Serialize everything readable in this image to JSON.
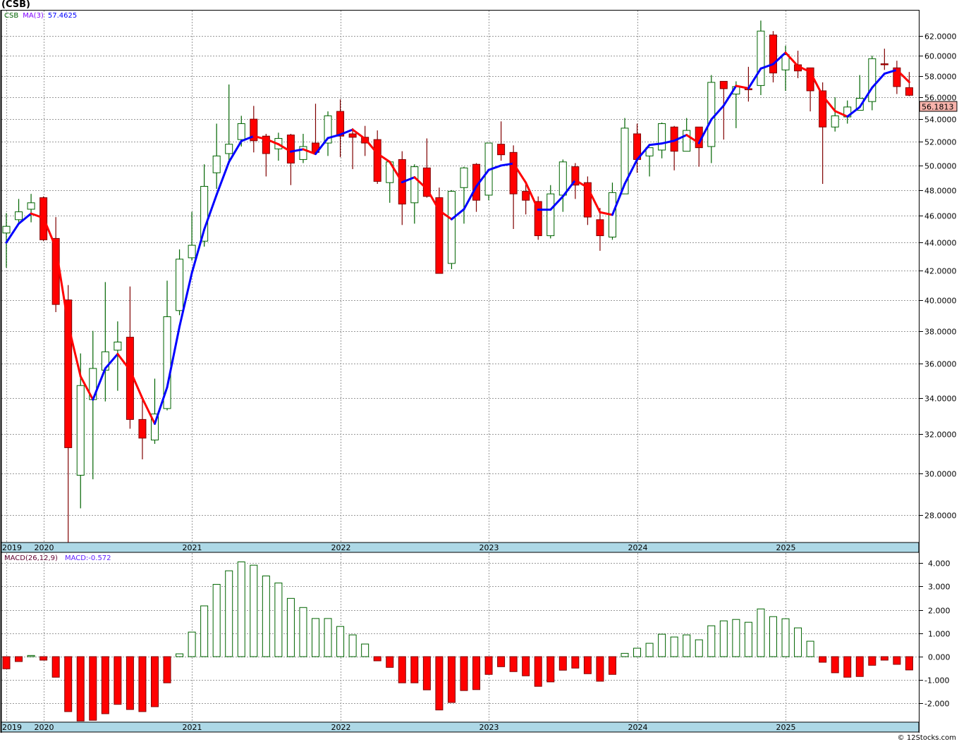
{
  "header": {
    "title": "(CSB)"
  },
  "price_legend": {
    "symbol": "CSB",
    "ma_label": "MA(3)",
    "ma_value": "57.4625"
  },
  "macd_legend": {
    "label": "MACD(26,12,9)",
    "value": "MACD:-0.572"
  },
  "last_price_tag": "56.1813",
  "footer": "© 12Stocks.com",
  "colors": {
    "up": "#006400",
    "down_fill": "#ff0000",
    "down_border": "#800000",
    "ma_up": "#0000ff",
    "ma_down": "#ff0000",
    "time_band": "#add8e6",
    "price_tag": "#f7b3ab"
  },
  "chart_data": [
    {
      "type": "candlestick",
      "title": "CSB monthly",
      "interval": "monthly",
      "first_period": "2019-10",
      "y_scale": "log",
      "ylim": [
        26.7,
        64.0
      ],
      "y_ticks": [
        "62.0000",
        "60.0000",
        "58.0000",
        "56.0000",
        "54.0000",
        "52.0000",
        "50.0000",
        "48.0000",
        "46.0000",
        "44.0000",
        "42.0000",
        "40.0000",
        "38.0000",
        "36.0000",
        "34.0000",
        "32.0000",
        "30.0000",
        "28.0000"
      ],
      "years": [
        {
          "label": "2019",
          "index": 0
        },
        {
          "label": "2020",
          "index": 3
        },
        {
          "label": "2021",
          "index": 15
        },
        {
          "label": "2022",
          "index": 27
        },
        {
          "label": "2023",
          "index": 39
        },
        {
          "label": "2024",
          "index": 51
        },
        {
          "label": "2025",
          "index": 63
        }
      ],
      "moving_average": {
        "name": "MA(3)",
        "period": 3,
        "last": 57.4625
      },
      "ohlc": [
        [
          44.7,
          46.2,
          42.2,
          45.2
        ],
        [
          45.7,
          47.3,
          45.5,
          46.3
        ],
        [
          46.5,
          47.7,
          45.5,
          47.0
        ],
        [
          47.4,
          47.5,
          44.1,
          44.2
        ],
        [
          44.3,
          45.9,
          39.2,
          39.7
        ],
        [
          40.0,
          41.0,
          26.7,
          31.3
        ],
        [
          29.9,
          36.6,
          28.3,
          34.7
        ],
        [
          33.9,
          38.0,
          29.7,
          35.7
        ],
        [
          35.6,
          41.2,
          33.8,
          36.7
        ],
        [
          36.8,
          38.6,
          34.4,
          37.3
        ],
        [
          37.6,
          40.9,
          32.3,
          32.8
        ],
        [
          32.8,
          33.9,
          30.7,
          31.8
        ],
        [
          31.7,
          35.1,
          31.5,
          33.1
        ],
        [
          33.4,
          41.3,
          33.3,
          38.9
        ],
        [
          39.3,
          43.5,
          39.0,
          42.8
        ],
        [
          42.9,
          46.3,
          42.7,
          43.8
        ],
        [
          44.1,
          50.1,
          43.7,
          48.3
        ],
        [
          49.4,
          53.6,
          48.1,
          50.8
        ],
        [
          51.0,
          57.2,
          50.2,
          51.8
        ],
        [
          52.2,
          54.3,
          51.6,
          53.6
        ],
        [
          54.0,
          55.2,
          51.1,
          52.1
        ],
        [
          52.5,
          52.7,
          49.1,
          51.0
        ],
        [
          51.4,
          52.8,
          50.4,
          52.3
        ],
        [
          52.6,
          52.7,
          48.4,
          50.2
        ],
        [
          50.5,
          52.7,
          50.2,
          51.6
        ],
        [
          51.9,
          55.4,
          50.9,
          51.1
        ],
        [
          51.9,
          54.7,
          50.8,
          54.3
        ],
        [
          54.7,
          55.8,
          50.7,
          52.5
        ],
        [
          52.7,
          53.2,
          49.7,
          52.4
        ],
        [
          52.4,
          53.4,
          50.8,
          51.9
        ],
        [
          52.2,
          53.0,
          48.5,
          48.7
        ],
        [
          48.6,
          50.3,
          47.0,
          50.3
        ],
        [
          50.5,
          51.2,
          45.3,
          46.9
        ],
        [
          47.0,
          50.1,
          45.4,
          49.9
        ],
        [
          49.8,
          52.3,
          47.4,
          47.5
        ],
        [
          47.4,
          48.2,
          41.8,
          41.8
        ],
        [
          42.5,
          48.0,
          42.1,
          47.9
        ],
        [
          48.2,
          49.9,
          45.4,
          49.8
        ],
        [
          50.1,
          50.2,
          46.3,
          47.2
        ],
        [
          47.6,
          51.9,
          47.2,
          51.9
        ],
        [
          51.8,
          53.8,
          50.4,
          50.9
        ],
        [
          51.1,
          51.7,
          45.0,
          47.7
        ],
        [
          47.9,
          48.5,
          46.1,
          47.2
        ],
        [
          47.1,
          47.5,
          44.2,
          44.5
        ],
        [
          44.5,
          48.4,
          44.3,
          47.7
        ],
        [
          47.6,
          50.5,
          46.3,
          50.3
        ],
        [
          49.9,
          50.2,
          47.3,
          48.4
        ],
        [
          48.6,
          49.1,
          45.3,
          45.9
        ],
        [
          45.7,
          46.6,
          43.4,
          44.5
        ],
        [
          44.4,
          48.6,
          44.2,
          47.8
        ],
        [
          47.7,
          54.1,
          47.7,
          53.2
        ],
        [
          52.7,
          53.6,
          49.4,
          50.5
        ],
        [
          50.8,
          51.5,
          49.1,
          51.5
        ],
        [
          51.3,
          53.7,
          50.6,
          53.6
        ],
        [
          53.3,
          53.4,
          49.6,
          51.2
        ],
        [
          51.2,
          54.1,
          51.2,
          53.0
        ],
        [
          53.3,
          53.3,
          49.9,
          51.5
        ],
        [
          51.6,
          58.1,
          50.2,
          57.4
        ],
        [
          57.5,
          57.5,
          52.2,
          56.8
        ],
        [
          56.3,
          57.5,
          53.2,
          57.0
        ],
        [
          56.8,
          58.9,
          55.6,
          56.7
        ],
        [
          57.1,
          63.6,
          56.2,
          62.5
        ],
        [
          62.1,
          62.5,
          57.4,
          58.3
        ],
        [
          58.6,
          61.0,
          56.6,
          60.1
        ],
        [
          59.1,
          60.5,
          57.8,
          58.5
        ],
        [
          58.8,
          58.8,
          54.7,
          56.6
        ],
        [
          56.6,
          57.4,
          48.5,
          53.3
        ],
        [
          53.3,
          56.0,
          52.9,
          54.3
        ],
        [
          54.2,
          55.7,
          53.6,
          55.1
        ],
        [
          54.8,
          58.1,
          54.8,
          55.9
        ],
        [
          55.6,
          60.0,
          54.8,
          59.7
        ],
        [
          59.2,
          60.7,
          58.6,
          59.1
        ],
        [
          58.8,
          59.5,
          56.3,
          57.0
        ],
        [
          56.9,
          58.4,
          56.1,
          56.18
        ]
      ]
    },
    {
      "type": "bar",
      "title": "MACD(26,12,9) histogram",
      "ylim": [
        -2.8,
        4.3
      ],
      "y_ticks": [
        "4.000",
        "3.000",
        "2.000",
        "1.000",
        "0.000",
        "-1.000",
        "-2.000"
      ],
      "values": [
        -0.52,
        -0.21,
        0.05,
        -0.15,
        -0.88,
        -2.35,
        -2.75,
        -2.72,
        -2.44,
        -2.04,
        -2.26,
        -2.35,
        -2.14,
        -1.12,
        0.12,
        1.05,
        2.17,
        3.09,
        3.67,
        4.05,
        3.91,
        3.45,
        3.15,
        2.49,
        2.1,
        1.63,
        1.63,
        1.29,
        0.93,
        0.54,
        -0.18,
        -0.46,
        -1.12,
        -1.12,
        -1.42,
        -2.28,
        -1.96,
        -1.45,
        -1.41,
        -0.76,
        -0.43,
        -0.64,
        -0.82,
        -1.27,
        -1.08,
        -0.58,
        -0.49,
        -0.73,
        -1.05,
        -0.76,
        0.14,
        0.36,
        0.57,
        0.96,
        0.84,
        0.93,
        0.72,
        1.32,
        1.53,
        1.59,
        1.47,
        2.04,
        1.71,
        1.62,
        1.23,
        0.66,
        -0.24,
        -0.69,
        -0.88,
        -0.85,
        -0.37,
        -0.15,
        -0.33,
        -0.57
      ]
    }
  ]
}
